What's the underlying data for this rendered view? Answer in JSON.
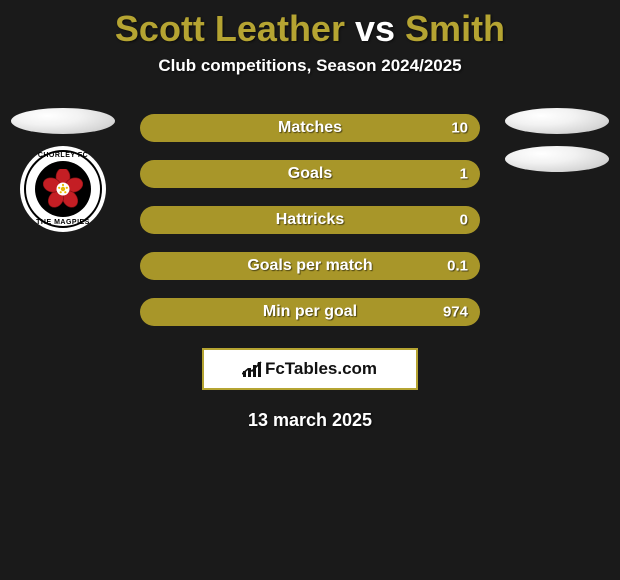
{
  "title": {
    "player1": "Scott Leather",
    "vs": "vs",
    "player2": "Smith",
    "player1_color": "#b5a432",
    "vs_color": "#ffffff",
    "player2_color": "#b5a432"
  },
  "subtitle": "Club competitions, Season 2024/2025",
  "left": {
    "badge_top": "CHORLEY FC",
    "badge_bottom": "THE MAGPIES"
  },
  "stats": {
    "pill_color": "#a89629",
    "rows": [
      {
        "label": "Matches",
        "left": "",
        "right": "10"
      },
      {
        "label": "Goals",
        "left": "",
        "right": "1"
      },
      {
        "label": "Hattricks",
        "left": "",
        "right": "0"
      },
      {
        "label": "Goals per match",
        "left": "",
        "right": "0.1"
      },
      {
        "label": "Min per goal",
        "left": "",
        "right": "974"
      }
    ]
  },
  "brand": {
    "text": "FcTables.com",
    "border_color": "#b5a432",
    "bg_color": "#ffffff"
  },
  "date": "13 march 2025",
  "colors": {
    "page_bg": "#1a1a1a",
    "text_white": "#ffffff"
  }
}
